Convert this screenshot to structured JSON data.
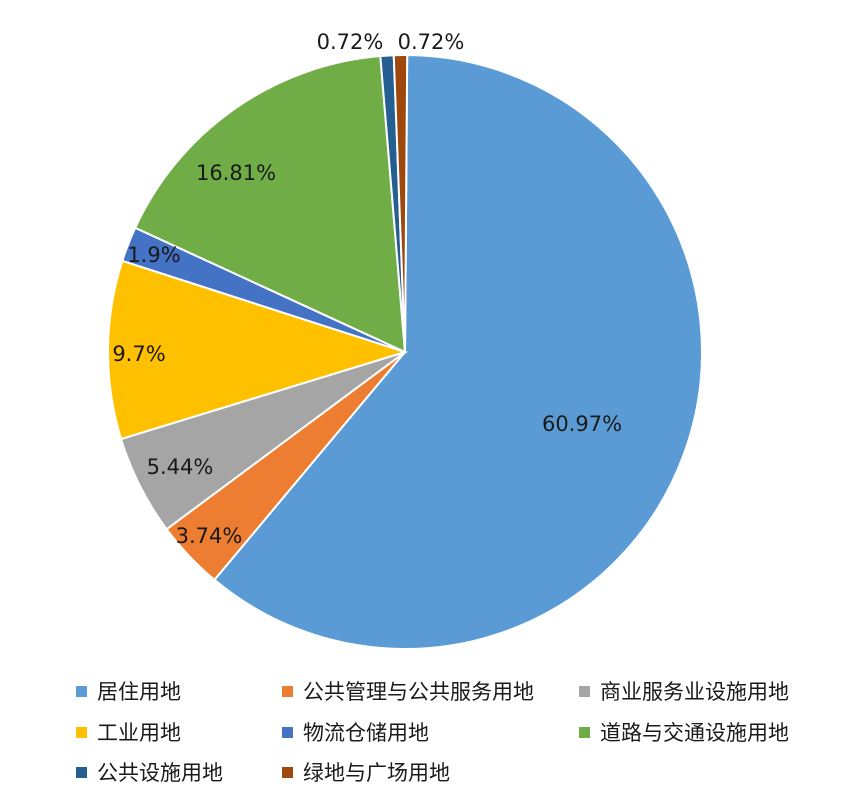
{
  "chart_data": {
    "type": "pie",
    "title": "",
    "legend_position": "bottom",
    "slices": [
      {
        "label": "居住用地",
        "value": 60.97,
        "display": "60.97%",
        "color": "#5b9bd5"
      },
      {
        "label": "公共管理与公共服务用地",
        "value": 3.74,
        "display": "3.74%",
        "color": "#ed7d31"
      },
      {
        "label": "商业服务业设施用地",
        "value": 5.44,
        "display": "5.44%",
        "color": "#a5a5a5"
      },
      {
        "label": "工业用地",
        "value": 9.7,
        "display": "9.7%",
        "color": "#ffc000"
      },
      {
        "label": "物流仓储用地",
        "value": 1.9,
        "display": "1.9%",
        "color": "#4472c4"
      },
      {
        "label": "道路与交通设施用地",
        "value": 16.81,
        "display": "16.81%",
        "color": "#70ad47"
      },
      {
        "label": "公共设施用地",
        "value": 0.72,
        "display": "0.72%",
        "color": "#255e91"
      },
      {
        "label": "绿地与广场用地",
        "value": 0.72,
        "display": "0.72%",
        "color": "#9e480e"
      }
    ]
  }
}
